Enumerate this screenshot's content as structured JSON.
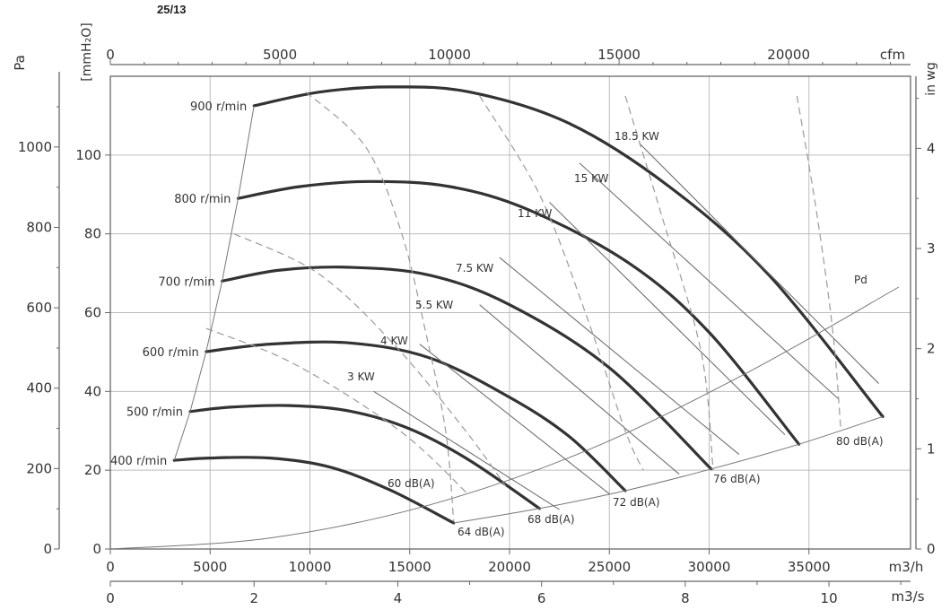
{
  "page_label": "25/13",
  "chart_data": {
    "type": "line",
    "colors": {
      "curve": "#333333",
      "grid": "#bdbdbd",
      "axis": "#666666",
      "text": "#333333",
      "dashed": "#9a9a9a"
    },
    "axes": {
      "x_bottom_m3h": {
        "label": "m3/h",
        "range": [
          0,
          40000
        ],
        "ticks": [
          "0",
          "5000",
          "10000",
          "15000",
          "20000",
          "25000",
          "30000",
          "35000"
        ]
      },
      "x_bottom_m3s": {
        "label": "m3/s",
        "range": [
          0,
          11.11
        ],
        "ticks": [
          "0",
          "2",
          "4",
          "6",
          "8",
          "10"
        ]
      },
      "x_top_cfm": {
        "label": "cfm",
        "range": [
          0,
          23540
        ],
        "ticks": [
          "0",
          "5000",
          "10000",
          "15000",
          "20000"
        ]
      },
      "y_left_pa": {
        "label": "Pa",
        "range": [
          0,
          1176
        ],
        "ticks": [
          "0",
          "200",
          "400",
          "600",
          "800",
          "1000"
        ]
      },
      "y_left_mmh2o": {
        "label": "[mmH₂O]",
        "range": [
          0,
          120
        ],
        "ticks": [
          "0",
          "20",
          "40",
          "60",
          "80",
          "100"
        ]
      },
      "y_right_inwg": {
        "label": "in wg",
        "range": [
          0,
          4.72
        ],
        "ticks": [
          "0",
          "1",
          "2",
          "3",
          "4"
        ]
      }
    },
    "series": [
      {
        "name": "400 r/min",
        "x": [
          3200,
          5000,
          8000,
          11000,
          14000,
          17200
        ],
        "y": [
          22.5,
          23.1,
          23.1,
          20.8,
          15.0,
          6.6
        ]
      },
      {
        "name": "500 r/min",
        "x": [
          4000,
          6000,
          9000,
          12000,
          15000,
          18000,
          21500
        ],
        "y": [
          34.9,
          36.0,
          36.4,
          35.0,
          30.5,
          22.5,
          10.3
        ]
      },
      {
        "name": "600 r/min",
        "x": [
          4800,
          8000,
          12000,
          16000,
          20000,
          23000,
          25800
        ],
        "y": [
          50.1,
          52.0,
          52.3,
          48.5,
          38.5,
          28.5,
          14.8
        ]
      },
      {
        "name": "700 r/min",
        "x": [
          5600,
          8500,
          12000,
          16000,
          20000,
          25000,
          30100
        ],
        "y": [
          68.0,
          70.8,
          71.5,
          69.5,
          62.0,
          46.0,
          20.3
        ]
      },
      {
        "name": "800 r/min",
        "x": [
          6400,
          9500,
          13000,
          17000,
          21000,
          26000,
          30000,
          34500
        ],
        "y": [
          89.0,
          92.0,
          93.3,
          92.0,
          86.0,
          72.5,
          55.0,
          26.6
        ]
      },
      {
        "name": "900 r/min",
        "x": [
          7200,
          10500,
          14000,
          18000,
          23000,
          28000,
          33000,
          38700
        ],
        "y": [
          112.5,
          116.0,
          117.3,
          116.0,
          108.0,
          92.0,
          69.5,
          33.6
        ]
      },
      {
        "name": "Pd",
        "x": [
          0,
          8000,
          16000,
          24000,
          32000,
          39500
        ],
        "y": [
          0,
          2.8,
          11.2,
          25.3,
          45.0,
          66.5
        ]
      }
    ],
    "power_lines": [
      {
        "label": "3 KW",
        "x": [
          13200,
          22500
        ],
        "y": [
          40,
          10
        ]
      },
      {
        "label": "4 KW",
        "x": [
          15500,
          25000
        ],
        "y": [
          52,
          14
        ]
      },
      {
        "label": "5.5 KW",
        "x": [
          18500,
          28500
        ],
        "y": [
          62,
          19
        ]
      },
      {
        "label": "7.5 KW",
        "x": [
          19500,
          31500
        ],
        "y": [
          74,
          24
        ]
      },
      {
        "label": "11 KW",
        "x": [
          22000,
          33800
        ],
        "y": [
          88,
          29
        ]
      },
      {
        "label": "15 KW",
        "x": [
          23500,
          36500
        ],
        "y": [
          98,
          38
        ]
      },
      {
        "label": "18.5 KW",
        "x": [
          26500,
          38500
        ],
        "y": [
          103,
          42
        ]
      }
    ],
    "sound_labels": [
      "60 dB(A)",
      "64 dB(A)",
      "68 dB(A)",
      "72 dB(A)",
      "76 dB(A)",
      "80 dB(A)"
    ]
  }
}
